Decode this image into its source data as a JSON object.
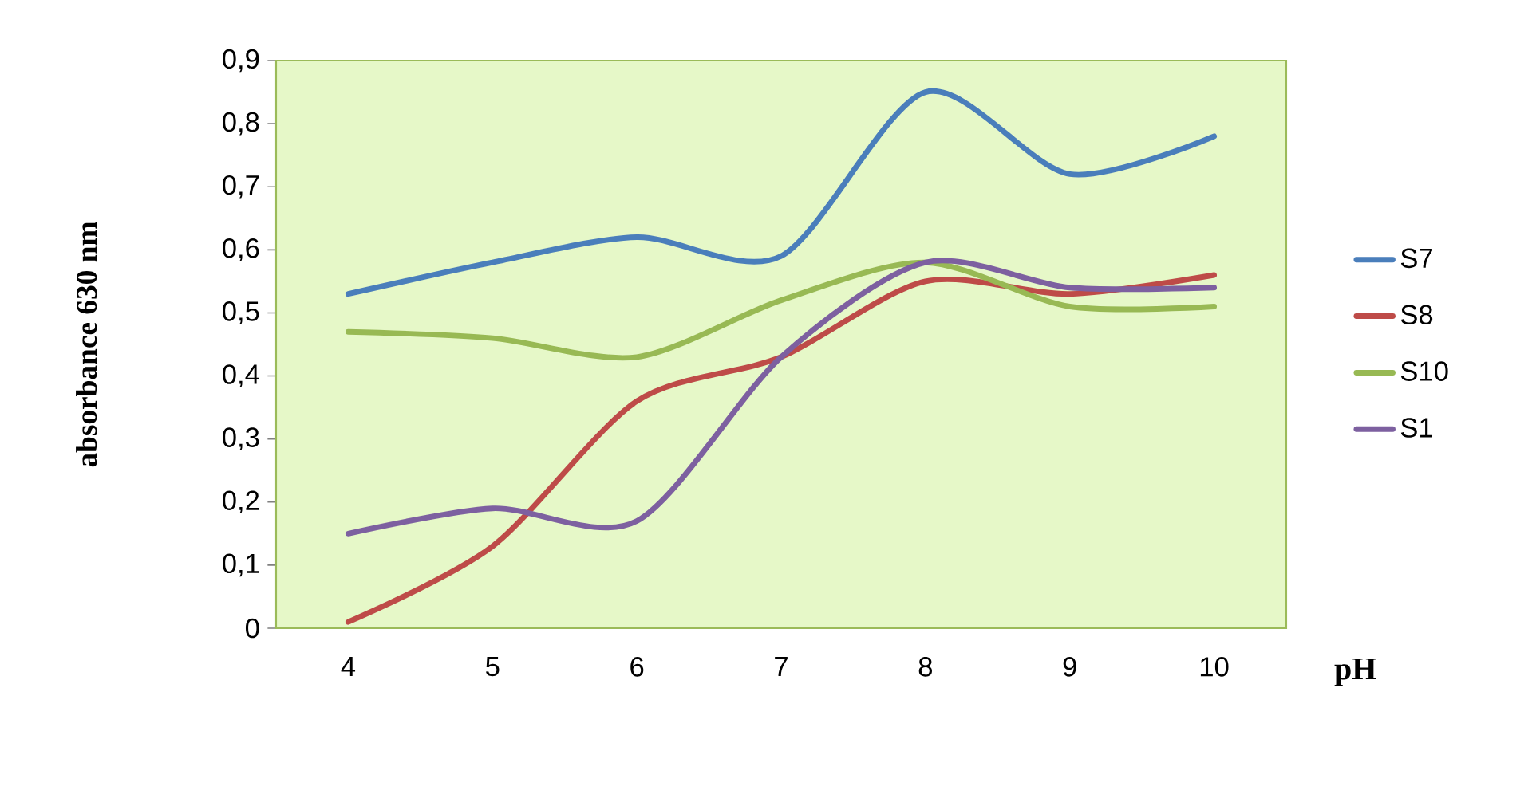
{
  "chart_data": {
    "type": "line",
    "xlabel": "pH",
    "ylabel": "absorbance 630 nm",
    "categories": [
      "4",
      "5",
      "6",
      "7",
      "8",
      "9",
      "10"
    ],
    "series": [
      {
        "name": "S7",
        "color": "#4a7ebb",
        "values": [
          0.53,
          0.58,
          0.62,
          0.59,
          0.85,
          0.72,
          0.78
        ]
      },
      {
        "name": "S8",
        "color": "#be4b48",
        "values": [
          0.01,
          0.13,
          0.36,
          0.43,
          0.55,
          0.53,
          0.56
        ]
      },
      {
        "name": "S10",
        "color": "#98b954",
        "values": [
          0.47,
          0.46,
          0.43,
          0.52,
          0.58,
          0.51,
          0.51
        ]
      },
      {
        "name": "S1",
        "color": "#7d60a0",
        "values": [
          0.15,
          0.19,
          0.17,
          0.43,
          0.58,
          0.54,
          0.54
        ]
      }
    ],
    "ylim": [
      0,
      0.9
    ],
    "yticks": [
      0,
      {
        "value": 0.1,
        "label": "0,1"
      },
      {
        "value": 0.2,
        "label": "0,2"
      },
      {
        "value": 0.3,
        "label": "0,3"
      },
      {
        "value": 0.4,
        "label": "0,4"
      },
      {
        "value": 0.5,
        "label": "0,5"
      },
      {
        "value": 0.6,
        "label": "0,6"
      },
      {
        "value": 0.7,
        "label": "0,7"
      },
      {
        "value": 0.8,
        "label": "0,8"
      },
      {
        "value": 0.9,
        "label": "0,9"
      }
    ],
    "legend": "right",
    "marker": "none",
    "line_style": "solid"
  }
}
